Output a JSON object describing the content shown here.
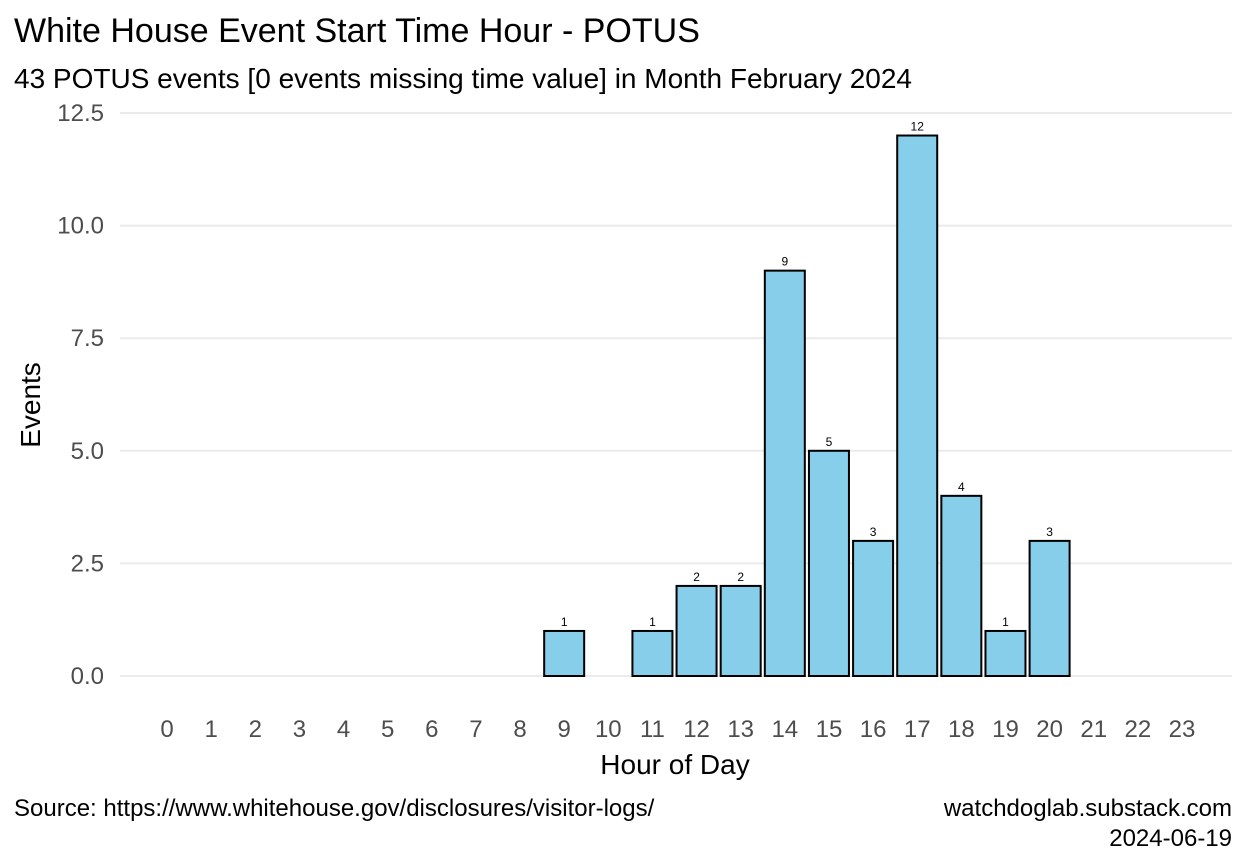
{
  "chart_data": {
    "type": "bar",
    "title": "White House Event Start Time Hour - POTUS",
    "subtitle": "43 POTUS events [0 events missing time value] in Month February 2024",
    "xlabel": "Hour of Day",
    "ylabel": "Events",
    "categories": [
      "0",
      "1",
      "2",
      "3",
      "4",
      "5",
      "6",
      "7",
      "8",
      "9",
      "10",
      "11",
      "12",
      "13",
      "14",
      "15",
      "16",
      "17",
      "18",
      "19",
      "20",
      "21",
      "22",
      "23"
    ],
    "values": [
      0,
      0,
      0,
      0,
      0,
      0,
      0,
      0,
      0,
      1,
      0,
      1,
      2,
      2,
      9,
      5,
      3,
      12,
      4,
      1,
      3,
      0,
      0,
      0
    ],
    "ylim": [
      0,
      12.5
    ],
    "yticks": [
      "0.0",
      "2.5",
      "5.0",
      "7.5",
      "10.0",
      "12.5"
    ],
    "grid": true,
    "bar_color": "#87ceeb",
    "caption_left": "Source: https://www.whitehouse.gov/disclosures/visitor-logs/",
    "caption_right_line1": "watchdoglab.substack.com",
    "caption_right_line2": "2024-06-19"
  }
}
